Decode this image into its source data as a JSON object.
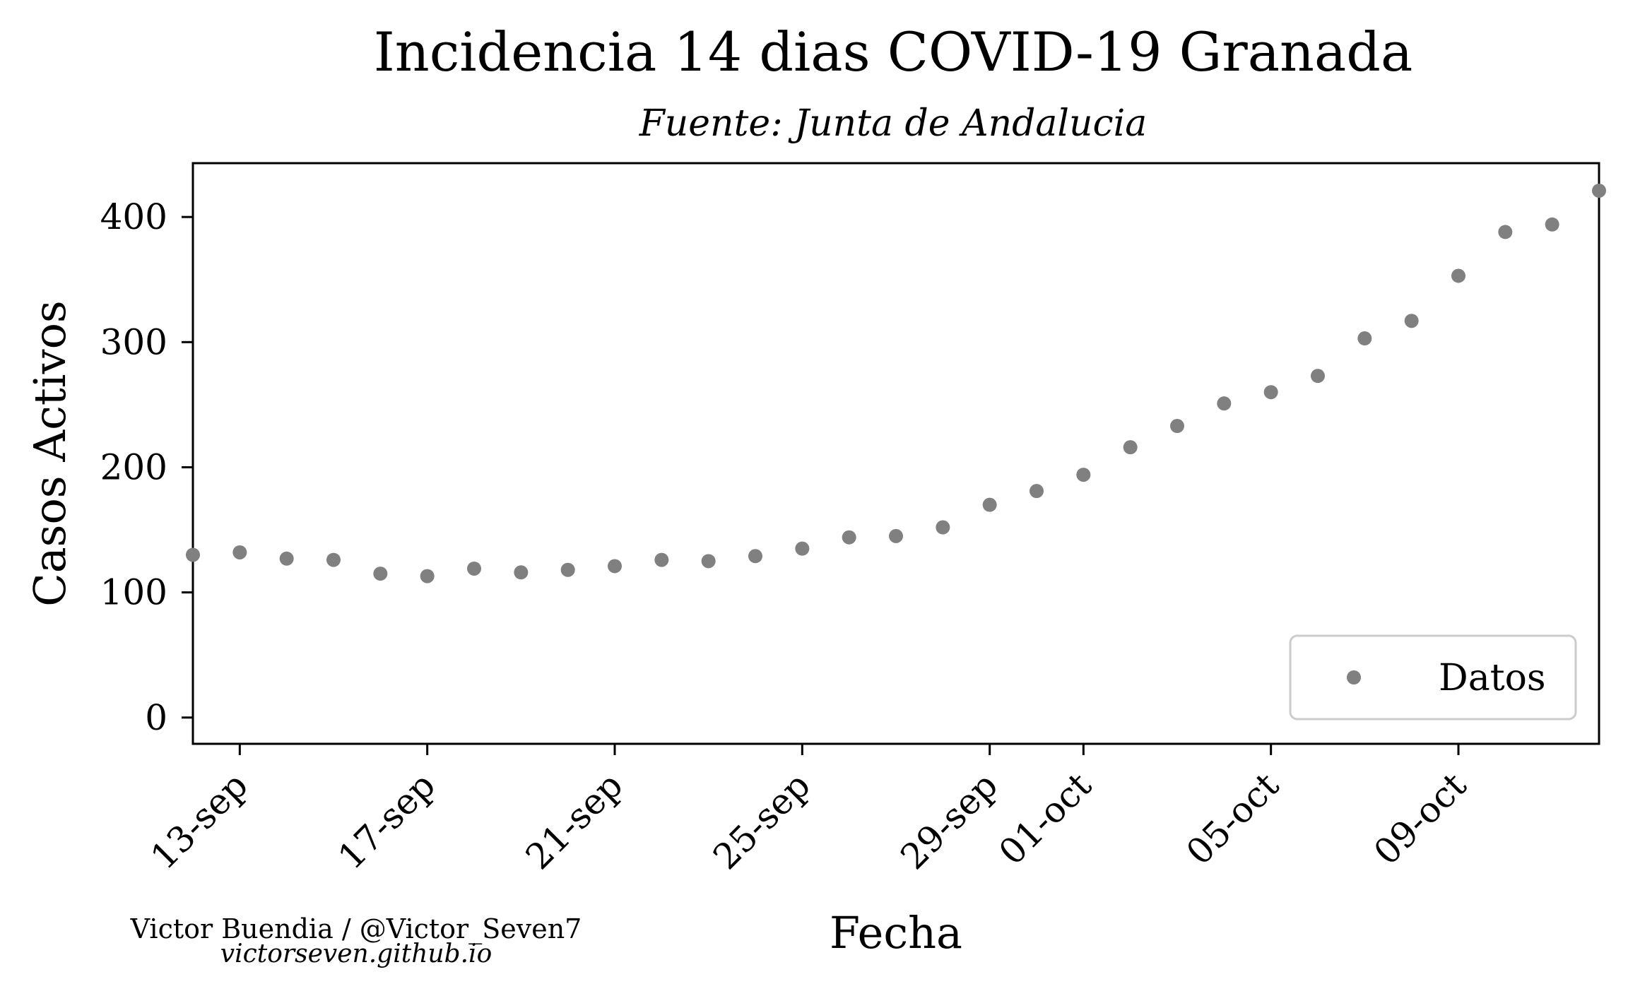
{
  "chart_data": {
    "type": "scatter",
    "title": "Incidencia 14 dias COVID-19 Granada",
    "subtitle": "Fuente: Junta de Andalucia",
    "xlabel": "Fecha",
    "ylabel": "Casos Activos",
    "x": [
      "12-sep",
      "13-sep",
      "14-sep",
      "15-sep",
      "16-sep",
      "17-sep",
      "18-sep",
      "19-sep",
      "20-sep",
      "21-sep",
      "22-sep",
      "23-sep",
      "24-sep",
      "25-sep",
      "26-sep",
      "27-sep",
      "28-sep",
      "29-sep",
      "30-sep",
      "01-oct",
      "02-oct",
      "03-oct",
      "04-oct",
      "05-oct",
      "06-oct",
      "07-oct",
      "08-oct",
      "09-oct",
      "10-oct",
      "11-oct",
      "12-oct"
    ],
    "series": [
      {
        "name": "Datos",
        "color": "#808080",
        "values": [
          130,
          132,
          127,
          126,
          115,
          113,
          119,
          116,
          118,
          121,
          126,
          125,
          129,
          135,
          144,
          145,
          152,
          170,
          181,
          194,
          216,
          233,
          251,
          260,
          273,
          303,
          317,
          353,
          388,
          394,
          421
        ]
      }
    ],
    "x_ticks": [
      "13-sep",
      "17-sep",
      "21-sep",
      "25-sep",
      "29-sep",
      "01-oct",
      "05-oct",
      "09-oct"
    ],
    "y_ticks": [
      0,
      100,
      200,
      300,
      400
    ],
    "ylim": [
      -21,
      443
    ],
    "xlim": [
      "12-sep",
      "12-oct"
    ],
    "grid": false,
    "legend_position": "lower right"
  },
  "credits": {
    "author": "Victor Buendia / @Victor_Seven7",
    "website": "victorseven.github.io"
  }
}
